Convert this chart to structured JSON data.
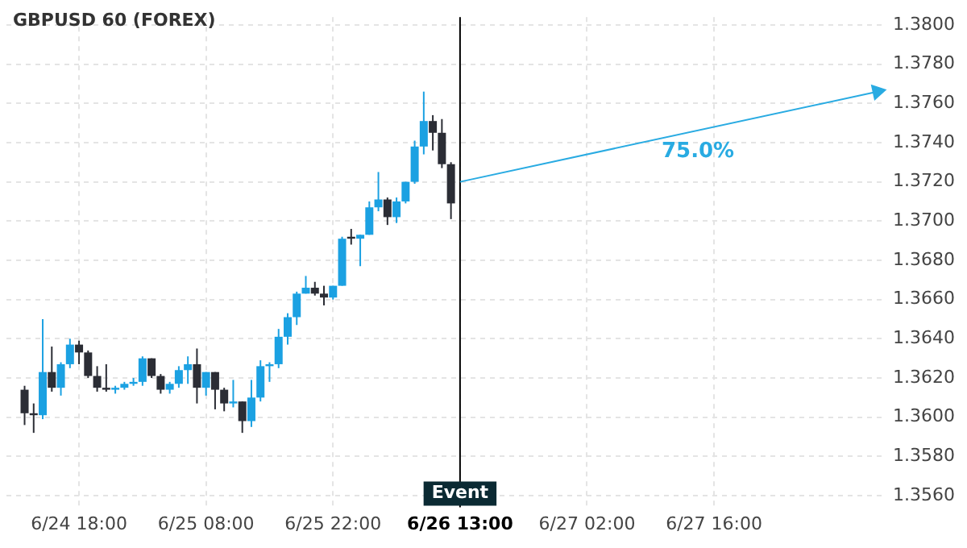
{
  "chart_data": {
    "type": "candlestick",
    "title": "GBPUSD 60 (FOREX)",
    "categories": [
      null,
      null,
      null,
      null,
      null,
      null,
      null,
      null,
      "6/24 18:00",
      null,
      null,
      null,
      null,
      null,
      null,
      null,
      null,
      null,
      null,
      null,
      null,
      null,
      "6/25 08:00",
      null,
      null,
      null,
      null,
      null,
      null,
      null,
      null,
      null,
      null,
      null,
      null,
      null,
      "6/25 22:00",
      null,
      null,
      null,
      null,
      null,
      null,
      null,
      null,
      null,
      null,
      null,
      null,
      null,
      "6/26 13:00",
      null,
      null,
      null,
      null,
      null,
      null,
      null,
      null,
      null,
      null,
      null,
      null,
      null,
      "6/27 02:00",
      null,
      null,
      null,
      null,
      null,
      null,
      null,
      null,
      null,
      null,
      null,
      null,
      null,
      "6/27 16:00",
      null,
      null,
      null,
      null,
      null,
      null,
      null,
      null,
      null,
      null,
      null,
      null,
      null,
      null,
      null,
      null,
      null,
      null,
      null
    ],
    "series": [
      {
        "ohlc": [
          null,
          null,
          [
            1.3614,
            1.3616,
            1.3596,
            1.3602
          ],
          [
            1.3602,
            1.3607,
            1.3592,
            1.3601
          ],
          [
            1.3601,
            1.365,
            1.3599,
            1.3623
          ],
          [
            1.3623,
            1.3636,
            1.3613,
            1.3615
          ],
          [
            1.3615,
            1.3628,
            1.3611,
            1.3627
          ],
          [
            1.3627,
            1.364,
            1.3625,
            1.3637
          ],
          [
            1.3637,
            1.3639,
            1.3627,
            1.3633
          ],
          [
            1.3633,
            1.3634,
            1.362,
            1.3621
          ],
          [
            1.3621,
            1.3626,
            1.3613,
            1.3615
          ],
          [
            1.3615,
            1.3627,
            1.3613,
            1.3614
          ],
          [
            1.3614,
            1.3616,
            1.3612,
            1.3615
          ],
          [
            1.3615,
            1.3618,
            1.3614,
            1.3617
          ],
          [
            1.3617,
            1.362,
            1.3616,
            1.3618
          ],
          [
            1.3618,
            1.3631,
            1.3616,
            1.363
          ],
          [
            1.363,
            1.363,
            1.362,
            1.3621
          ],
          [
            1.3621,
            1.3622,
            1.3612,
            1.3614
          ],
          [
            1.3614,
            1.3618,
            1.3612,
            1.3617
          ],
          [
            1.3617,
            1.3626,
            1.3615,
            1.3624
          ],
          [
            1.3624,
            1.3631,
            1.3617,
            1.3627
          ],
          [
            1.3627,
            1.3635,
            1.3607,
            1.3615
          ],
          [
            1.3615,
            1.3623,
            1.3611,
            1.3623
          ],
          [
            1.3623,
            1.3623,
            1.3604,
            1.3614
          ],
          [
            1.3614,
            1.3615,
            1.3603,
            1.3607
          ],
          [
            1.3607,
            1.3619,
            1.3605,
            1.3608
          ],
          [
            1.3608,
            1.3608,
            1.3592,
            1.3598
          ],
          [
            1.3598,
            1.3619,
            1.3595,
            1.361
          ],
          [
            1.361,
            1.3629,
            1.3608,
            1.3626
          ],
          [
            1.3626,
            1.3628,
            1.3618,
            1.3627
          ],
          [
            1.3627,
            1.3645,
            1.3625,
            1.3641
          ],
          [
            1.3641,
            1.3653,
            1.3637,
            1.3651
          ],
          [
            1.3651,
            1.3664,
            1.3647,
            1.3663
          ],
          [
            1.3663,
            1.3672,
            1.3663,
            1.3666
          ],
          [
            1.3666,
            1.3669,
            1.3662,
            1.3663
          ],
          [
            1.3663,
            1.3667,
            1.3657,
            1.3661
          ],
          [
            1.3661,
            1.3667,
            1.366,
            1.3667
          ],
          [
            1.3667,
            1.3692,
            1.3667,
            1.3691
          ],
          [
            1.3692,
            1.3696,
            1.3688,
            1.3691
          ],
          [
            1.3691,
            1.3693,
            1.3677,
            1.3693
          ],
          [
            1.3693,
            1.371,
            1.3693,
            1.3707
          ],
          [
            1.3707,
            1.3725,
            1.3705,
            1.3711
          ],
          [
            1.3711,
            1.3712,
            1.3698,
            1.3702
          ],
          [
            1.3702,
            1.3712,
            1.3699,
            1.371
          ],
          [
            1.371,
            1.372,
            1.3709,
            1.372
          ],
          [
            1.372,
            1.3741,
            1.3719,
            1.3738
          ],
          [
            1.3738,
            1.3766,
            1.3734,
            1.3751
          ],
          [
            1.3751,
            1.3754,
            1.3736,
            1.3745
          ],
          [
            1.3745,
            1.3752,
            1.3727,
            1.3729
          ],
          [
            1.3729,
            1.373,
            1.3701,
            1.3709
          ],
          null,
          null,
          null,
          null,
          null,
          null,
          null,
          null,
          null,
          null,
          null,
          null,
          null,
          null,
          null,
          null,
          null,
          null,
          null,
          null,
          null,
          null,
          null,
          null,
          null,
          null,
          null,
          null,
          null,
          null,
          null,
          null,
          null,
          null,
          null,
          null,
          null,
          null,
          null,
          null,
          null,
          null,
          null,
          null,
          null,
          null,
          null,
          null
        ],
        "colors": [
          null,
          null,
          "#2b2d35",
          "#2b2d35",
          "#1ba1e2",
          "#2b2d35",
          "#1ba1e2",
          "#1ba1e2",
          "#2b2d35",
          "#2b2d35",
          "#2b2d35",
          "#2b2d35",
          "#1ba1e2",
          "#1ba1e2",
          "#1ba1e2",
          "#1ba1e2",
          "#2b2d35",
          "#2b2d35",
          "#1ba1e2",
          "#1ba1e2",
          "#1ba1e2",
          "#2b2d35",
          "#1ba1e2",
          "#2b2d35",
          "#2b2d35",
          "#1ba1e2",
          "#2b2d35",
          "#1ba1e2",
          "#1ba1e2",
          "#1ba1e2",
          "#1ba1e2",
          "#1ba1e2",
          "#1ba1e2",
          "#1ba1e2",
          "#2b2d35",
          "#2b2d35",
          "#1ba1e2",
          "#1ba1e2",
          "#2b2d35",
          "#1ba1e2",
          "#1ba1e2",
          "#1ba1e2",
          "#2b2d35",
          "#1ba1e2",
          "#1ba1e2",
          "#1ba1e2",
          "#1ba1e2",
          "#2b2d35",
          "#2b2d35",
          "#2b2d35",
          null,
          null,
          null,
          null,
          null,
          null,
          null,
          null,
          null,
          null,
          null,
          null,
          null,
          null,
          null,
          null,
          null,
          null,
          null,
          null,
          null,
          null,
          null,
          null,
          null,
          null,
          null,
          null,
          null,
          null,
          null,
          null,
          null,
          null,
          null,
          null,
          null,
          null,
          null,
          null,
          null,
          null,
          null,
          null,
          null,
          null,
          null,
          null
        ]
      },
      {
        "type": "line",
        "color": "#29abe2",
        "values": [
          null,
          null,
          null,
          null,
          null,
          null,
          null,
          null,
          null,
          null,
          null,
          null,
          null,
          null,
          null,
          null,
          null,
          null,
          null,
          null,
          null,
          null,
          null,
          null,
          null,
          null,
          null,
          null,
          null,
          null,
          null,
          null,
          null,
          null,
          null,
          null,
          null,
          null,
          null,
          null,
          null,
          null,
          null,
          null,
          null,
          null,
          null,
          null,
          null,
          null,
          1.372,
          null,
          null,
          null,
          null,
          null,
          null,
          null,
          null,
          null,
          null,
          null,
          null,
          null,
          null,
          null,
          null,
          null,
          null,
          null,
          null,
          null,
          null,
          null,
          null,
          null,
          null,
          null,
          null,
          null,
          null,
          null,
          null,
          null,
          null,
          null,
          null,
          null,
          null,
          null,
          null,
          null,
          null,
          null,
          null,
          null,
          1.3766,
          null
        ]
      }
    ],
    "ylim": [
      1.3554,
      1.3804
    ],
    "yticks": [
      {
        "value": 1.356,
        "label": "1.3560"
      },
      {
        "value": 1.358,
        "label": "1.3580"
      },
      {
        "value": 1.36,
        "label": "1.3600"
      },
      {
        "value": 1.362,
        "label": "1.3620"
      },
      {
        "value": 1.364,
        "label": "1.3640"
      },
      {
        "value": 1.366,
        "label": "1.3660"
      },
      {
        "value": 1.368,
        "label": "1.3680"
      },
      {
        "value": 1.37,
        "label": "1.3700"
      },
      {
        "value": 1.372,
        "label": "1.3720"
      },
      {
        "value": 1.374,
        "label": "1.3740"
      },
      {
        "value": 1.376,
        "label": "1.3760"
      },
      {
        "value": 1.378,
        "label": "1.3780"
      },
      {
        "value": 1.38,
        "label": "1.3800"
      }
    ],
    "ref_lines": [
      {
        "axis": "x",
        "value": "6/26 13:00",
        "label": "Event",
        "color": "#000000"
      }
    ],
    "annotations": [
      "75.0%"
    ],
    "grid": true,
    "legend": false
  }
}
